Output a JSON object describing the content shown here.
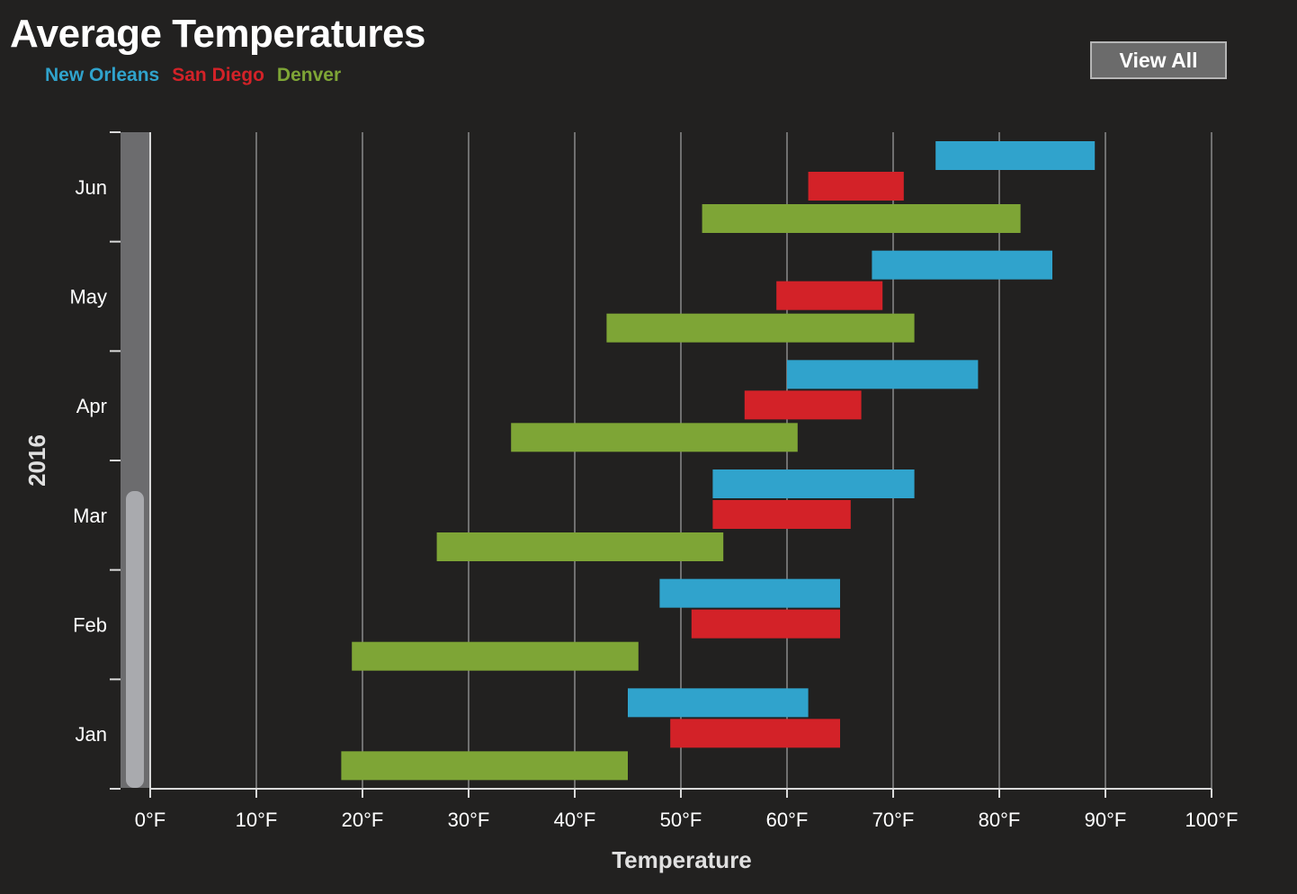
{
  "title": "Average Temperatures",
  "legend": [
    {
      "name": "New Orleans",
      "color": "#30a3cc"
    },
    {
      "name": "San Diego",
      "color": "#d32228"
    },
    {
      "name": "Denver",
      "color": "#7ea536"
    }
  ],
  "view_all_label": "View All",
  "chart_data": {
    "type": "bar",
    "orientation": "horizontal",
    "title": "Average Temperatures",
    "xlabel": "Temperature",
    "ylabel": "2016",
    "xlim": [
      0,
      100
    ],
    "x_ticks": [
      "0°F",
      "10°F",
      "20°F",
      "30°F",
      "40°F",
      "50°F",
      "60°F",
      "70°F",
      "80°F",
      "90°F",
      "100°F"
    ],
    "grid": true,
    "legend_position": "top-left",
    "categories": [
      "Jan",
      "Feb",
      "Mar",
      "Apr",
      "May",
      "Jun"
    ],
    "series": [
      {
        "name": "New Orleans",
        "color": "#30a3cc",
        "ranges": [
          [
            45,
            62
          ],
          [
            48,
            65
          ],
          [
            53,
            72
          ],
          [
            60,
            78
          ],
          [
            68,
            85
          ],
          [
            74,
            89
          ]
        ]
      },
      {
        "name": "San Diego",
        "color": "#d32228",
        "ranges": [
          [
            49,
            65
          ],
          [
            51,
            65
          ],
          [
            53,
            66
          ],
          [
            56,
            67
          ],
          [
            59,
            69
          ],
          [
            62,
            71
          ]
        ]
      },
      {
        "name": "Denver",
        "color": "#7ea536",
        "ranges": [
          [
            18,
            45
          ],
          [
            19,
            46
          ],
          [
            27,
            54
          ],
          [
            34,
            61
          ],
          [
            43,
            72
          ],
          [
            52,
            82
          ]
        ]
      }
    ]
  }
}
